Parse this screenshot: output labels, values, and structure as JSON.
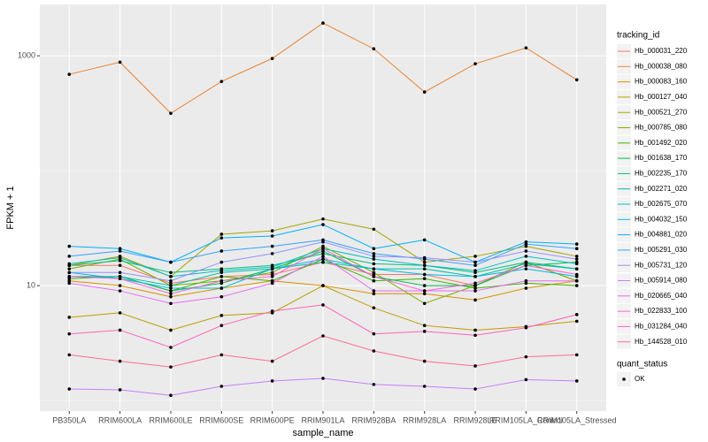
{
  "chart_data": {
    "type": "line",
    "x_label": "sample_name",
    "y_label": "FPKM + 1",
    "categories": [
      "PB350LA",
      "RRIM600LA",
      "RRIM600LE",
      "RRIM600SE",
      "RRIM600PE",
      "RRIM901LA",
      "RRIM928BA",
      "RRIM928LA",
      "RRIM928LE",
      "RRIM105LA_Control",
      "RRIM105LA_Stressed"
    ],
    "ylim": [
      0.81,
      2800
    ],
    "yticks": [
      10,
      1000
    ],
    "ylog": true,
    "grid": true,
    "legend_position": "right",
    "legend_title": "tracking_id",
    "point_legend_title": "quant_status",
    "point_legend_label": "OK",
    "point_color": "#000000",
    "series": [
      {
        "name": "Hb_000031_220",
        "color": "#F8766D",
        "values": [
          15,
          15,
          10.5,
          12,
          12.5,
          16,
          12.5,
          12.5,
          10,
          16,
          11
        ]
      },
      {
        "name": "Hb_000038_080",
        "color": "#EA8331",
        "values": [
          690,
          880,
          316,
          598,
          948,
          1927,
          1150,
          484,
          852,
          1173,
          618
        ]
      },
      {
        "name": "Hb_000083_160",
        "color": "#D89000",
        "values": [
          11,
          10,
          8,
          9.5,
          11,
          10,
          8.5,
          8.5,
          7.5,
          9.5,
          11
        ]
      },
      {
        "name": "Hb_000127_040",
        "color": "#C09B00",
        "values": [
          5.3,
          5.8,
          4.1,
          5.5,
          5.8,
          10,
          6.4,
          4.5,
          4.1,
          4.4,
          4.9
        ]
      },
      {
        "name": "Hb_000521_270",
        "color": "#A3A500",
        "values": [
          15,
          18,
          12,
          28,
          30,
          38,
          31,
          16,
          18,
          22,
          18
        ]
      },
      {
        "name": "Hb_000785_080",
        "color": "#7CAE00",
        "values": [
          14,
          17,
          10,
          11,
          13,
          22,
          13,
          7,
          10,
          16,
          11
        ]
      },
      {
        "name": "Hb_001492_020",
        "color": "#39B600",
        "values": [
          11.5,
          12,
          9,
          12,
          11,
          17,
          11,
          11.5,
          9.5,
          10.5,
          10
        ]
      },
      {
        "name": "Hb_001638_170",
        "color": "#00BB4E",
        "values": [
          12,
          12,
          9,
          10.5,
          14,
          20,
          12,
          10,
          10,
          15,
          16
        ]
      },
      {
        "name": "Hb_002235_170",
        "color": "#00BF7D",
        "values": [
          15,
          16.5,
          13,
          14,
          15,
          19,
          15.5,
          15,
          13,
          16,
          14
        ]
      },
      {
        "name": "Hb_002271_020",
        "color": "#00C1A3",
        "values": [
          12,
          12,
          10,
          13,
          14,
          16,
          14,
          14,
          12,
          15.5,
          14
        ]
      },
      {
        "name": "Hb_002675_070",
        "color": "#00BFC4",
        "values": [
          15.5,
          17.5,
          12,
          13.5,
          14.5,
          21,
          17,
          15,
          13.5,
          18,
          15.5
        ]
      },
      {
        "name": "Hb_004032_150",
        "color": "#00BAE0",
        "values": [
          13,
          11.5,
          9.5,
          9.5,
          14,
          17,
          14,
          12.5,
          12,
          14,
          12
        ]
      },
      {
        "name": "Hb_004881_020",
        "color": "#00B0F6",
        "values": [
          22,
          21,
          16,
          26,
          27,
          34,
          21,
          25,
          16,
          24,
          23
        ]
      },
      {
        "name": "Hb_005291_030",
        "color": "#35A2FF",
        "values": [
          18,
          20,
          16,
          20,
          22,
          25,
          19,
          17,
          15,
          23,
          21
        ]
      },
      {
        "name": "Hb_005731_120",
        "color": "#9590FF",
        "values": [
          13,
          13,
          11,
          16,
          19,
          24,
          18,
          17.5,
          16,
          20,
          17
        ]
      },
      {
        "name": "Hb_005914_080",
        "color": "#C77CFF",
        "values": [
          1.26,
          1.24,
          1.11,
          1.33,
          1.48,
          1.56,
          1.38,
          1.33,
          1.26,
          1.52,
          1.48
        ]
      },
      {
        "name": "Hb_020665_040",
        "color": "#E76BF3",
        "values": [
          10.5,
          9,
          7,
          8,
          10.5,
          18,
          9,
          9,
          9,
          11,
          11
        ]
      },
      {
        "name": "Hb_022833_100",
        "color": "#FA62DB",
        "values": [
          12,
          11.5,
          8.5,
          11,
          12,
          21,
          12,
          9,
          10.5,
          15,
          12.5
        ]
      },
      {
        "name": "Hb_031284_040",
        "color": "#FF62BC",
        "values": [
          3.8,
          4.1,
          2.9,
          4.5,
          6,
          6.8,
          3.8,
          4,
          3.7,
          4.3,
          5.6
        ]
      },
      {
        "name": "Hb_144528_010",
        "color": "#FF6C91",
        "values": [
          2.5,
          2.2,
          1.96,
          2.5,
          2.2,
          3.65,
          2.7,
          2.2,
          2,
          2.4,
          2.5
        ]
      }
    ]
  }
}
